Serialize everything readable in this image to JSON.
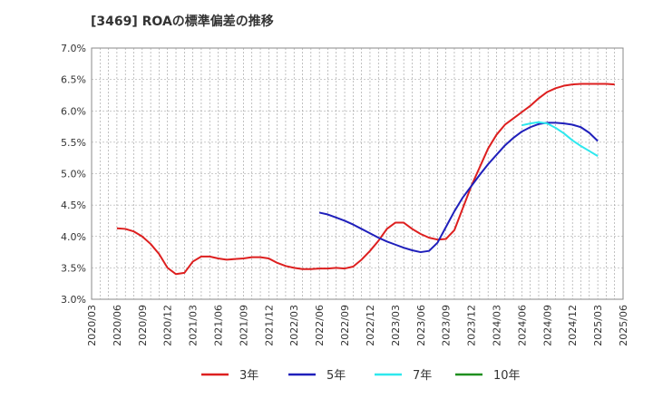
{
  "chart_data": {
    "type": "line",
    "title": "[3469]  ROAの標準偏差の推移",
    "xlabel": "",
    "ylabel": "",
    "ylim": [
      3.0,
      7.0
    ],
    "y_ticks": [
      "3.0%",
      "3.5%",
      "4.0%",
      "4.5%",
      "5.0%",
      "5.5%",
      "6.0%",
      "6.5%",
      "7.0%"
    ],
    "y_tick_values": [
      3.0,
      3.5,
      4.0,
      4.5,
      5.0,
      5.5,
      6.0,
      6.5,
      7.0
    ],
    "x_ticks": [
      "2020/03",
      "2020/06",
      "2020/09",
      "2020/12",
      "2021/03",
      "2021/06",
      "2021/09",
      "2021/12",
      "2022/03",
      "2022/06",
      "2022/09",
      "2022/12",
      "2023/03",
      "2023/06",
      "2023/09",
      "2023/12",
      "2024/03",
      "2024/06",
      "2024/09",
      "2024/12",
      "2025/03",
      "2025/06"
    ],
    "x_start": "2020/03",
    "grid": true,
    "legend": "bottom",
    "series": [
      {
        "name": "3年",
        "color": "#dd1f1f",
        "start": "2020/06",
        "values": [
          4.13,
          4.12,
          4.08,
          4.0,
          3.88,
          3.72,
          3.5,
          3.4,
          3.42,
          3.6,
          3.68,
          3.68,
          3.65,
          3.63,
          3.64,
          3.65,
          3.67,
          3.67,
          3.65,
          3.58,
          3.53,
          3.5,
          3.48,
          3.48,
          3.49,
          3.49,
          3.5,
          3.49,
          3.52,
          3.63,
          3.77,
          3.93,
          4.12,
          4.22,
          4.22,
          4.12,
          4.04,
          3.98,
          3.95,
          3.96,
          4.1,
          4.45,
          4.8,
          5.1,
          5.4,
          5.62,
          5.78,
          5.88,
          5.98,
          6.08,
          6.2,
          6.3,
          6.36,
          6.4,
          6.42,
          6.43,
          6.43,
          6.43,
          6.43,
          6.42
        ]
      },
      {
        "name": "5年",
        "color": "#1f1fbb",
        "start": "2022/06",
        "values": [
          4.38,
          4.35,
          4.3,
          4.25,
          4.19,
          4.12,
          4.05,
          3.98,
          3.92,
          3.87,
          3.82,
          3.78,
          3.75,
          3.77,
          3.9,
          4.15,
          4.4,
          4.62,
          4.8,
          4.98,
          5.15,
          5.3,
          5.45,
          5.57,
          5.67,
          5.74,
          5.79,
          5.81,
          5.81,
          5.8,
          5.78,
          5.74,
          5.65,
          5.52
        ]
      },
      {
        "name": "7年",
        "color": "#2ee8ee",
        "start": "2024/06",
        "values": [
          5.77,
          5.8,
          5.82,
          5.8,
          5.73,
          5.64,
          5.53,
          5.44,
          5.36,
          5.28
        ]
      },
      {
        "name": "10年",
        "color": "#1f8f1f",
        "start": "",
        "values": []
      }
    ]
  }
}
